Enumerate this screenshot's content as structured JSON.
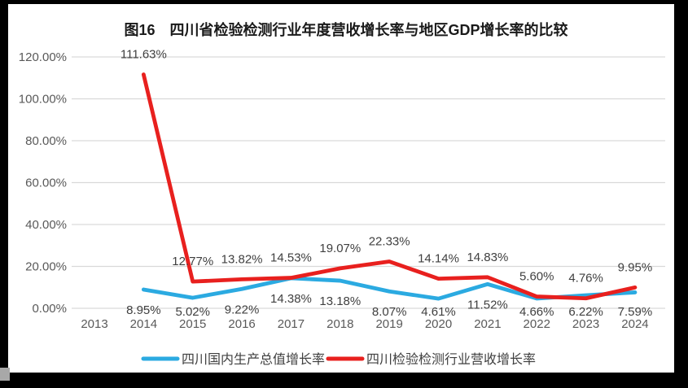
{
  "chart_data": {
    "type": "line",
    "title": "图16　四川省检验检测行业年度营收增长率与地区GDP增长率的比较",
    "categories": [
      "2013",
      "2014",
      "2015",
      "2016",
      "2017",
      "2018",
      "2019",
      "2020",
      "2021",
      "2022",
      "2023",
      "2024"
    ],
    "series": [
      {
        "name": "四川国内生产总值增长率",
        "color": "#2baae1",
        "label_position": "below",
        "values": [
          null,
          8.95,
          5.02,
          9.22,
          14.38,
          13.18,
          8.07,
          4.61,
          11.52,
          4.66,
          6.22,
          7.59
        ]
      },
      {
        "name": "四川检验检测行业营收增长率",
        "color": "#e8201e",
        "label_position": "above",
        "values": [
          null,
          111.63,
          12.77,
          13.82,
          14.53,
          19.07,
          22.33,
          14.14,
          14.83,
          5.6,
          4.76,
          9.95
        ]
      }
    ],
    "yticks": [
      "0.00%",
      "20.00%",
      "40.00%",
      "60.00%",
      "80.00%",
      "100.00%",
      "120.00%"
    ],
    "ytick_values": [
      0,
      20,
      40,
      60,
      80,
      100,
      120
    ],
    "ylim": [
      0,
      120
    ],
    "value_suffix": "%",
    "grid": true,
    "legend_position": "bottom"
  }
}
